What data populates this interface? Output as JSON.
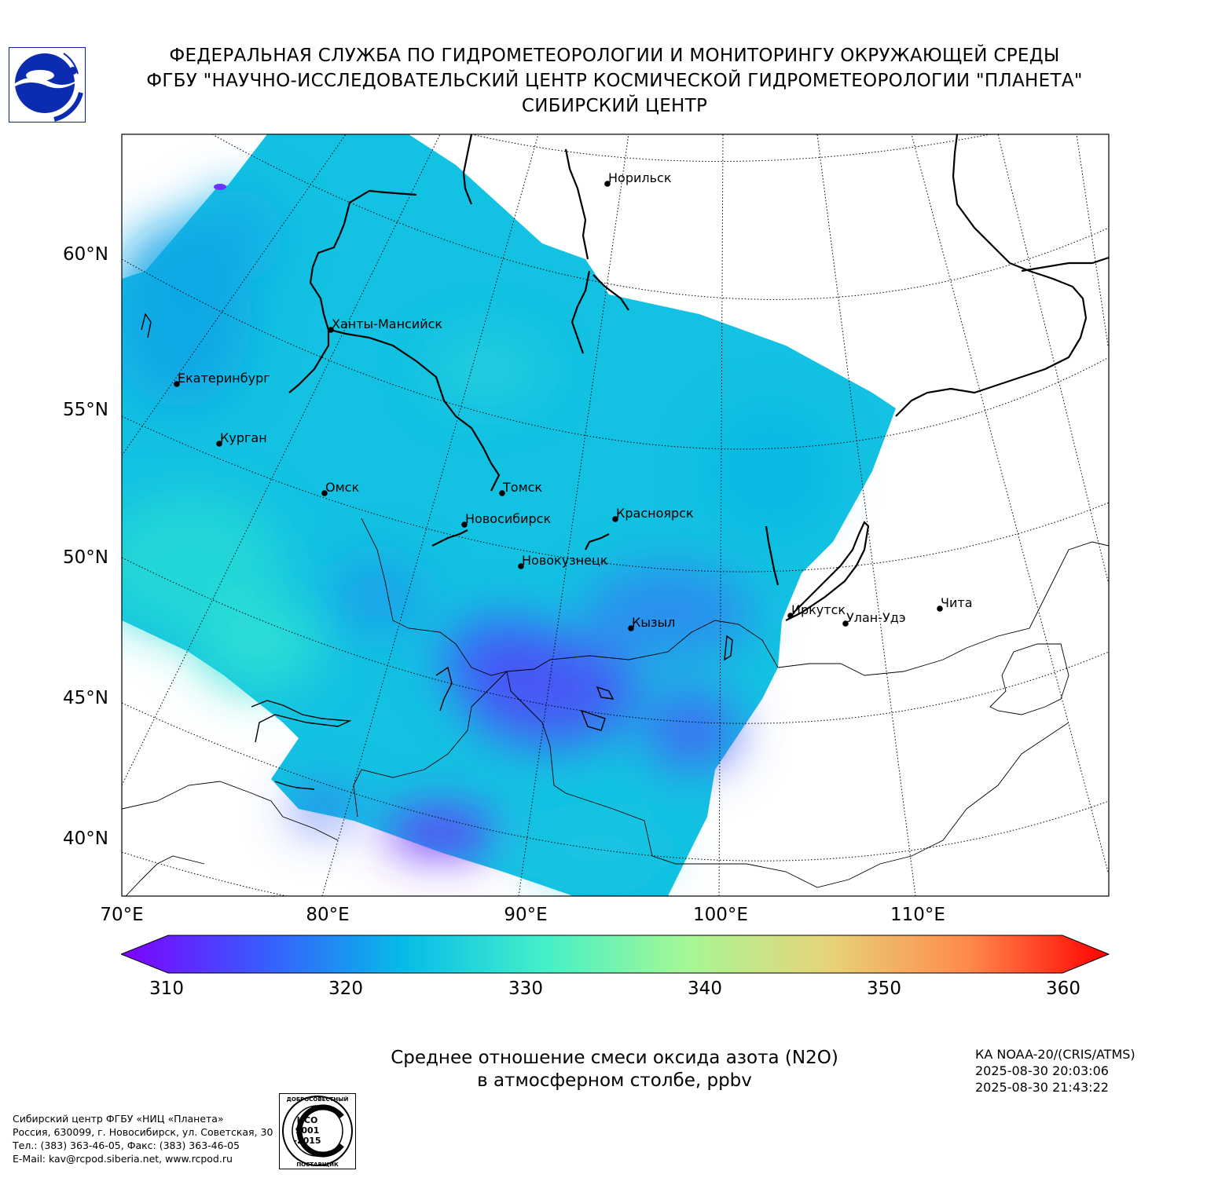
{
  "header": {
    "line1": "ФЕДЕРАЛЬНАЯ СЛУЖБА ПО ГИДРОМЕТЕОРОЛОГИИ И МОНИТОРИНГУ ОКРУЖАЮЩЕЙ СРЕДЫ",
    "line2": "ФГБУ \"НАУЧНО-ИССЛЕДОВАТЕЛЬСКИЙ ЦЕНТР КОСМИЧЕСКОЙ ГИДРОМЕТЕОРОЛОГИИ \"ПЛАНЕТА\"",
    "line3": "СИБИРСКИЙ ЦЕНТР"
  },
  "logo_icon": "roshydromet-logo",
  "map": {
    "lat_labels": [
      "60°N",
      "55°N",
      "50°N",
      "45°N",
      "40°N"
    ],
    "lon_labels": [
      "70°E",
      "80°E",
      "90°E",
      "100°E",
      "110°E"
    ],
    "cities": [
      "Норильск",
      "Ханты-Мансийск",
      "Екатеринбург",
      "Курган",
      "Омск",
      "Томск",
      "Новосибирск",
      "Красноярск",
      "Новокузнецк",
      "Кызыл",
      "Иркутск",
      "Улан-Удэ",
      "Чита"
    ]
  },
  "colorbar": {
    "min": 310,
    "max": 360,
    "tick_labels": [
      "310",
      "320",
      "330",
      "340",
      "350",
      "360"
    ],
    "colors": [
      "#7f00ff",
      "#3a5afd",
      "#06bbe9",
      "#44f0c8",
      "#a5f796",
      "#e7d47a",
      "#ff8a4c",
      "#ff0000"
    ]
  },
  "caption": {
    "line1": "Среднее отношение смеси оксида азота (N2O)",
    "line2": "в атмосферном столбе, ppbv"
  },
  "satellite": {
    "name": "КА NOAA-20/(CRIS/ATMS)",
    "time1": "2025-08-30 20:03:06",
    "time2": "2025-08-30 21:43:22"
  },
  "footer": {
    "line1": "Сибирский центр ФГБУ «НИЦ «Планета»",
    "line2": "Россия, 630099, г. Новосибирск, ул. Советская, 30",
    "line3": "Тел.: (383) 363-46-05, Факс: (383) 363-46-05",
    "line4": "E-Mail: kav@rcpod.siberia.net, www.rcpod.ru"
  },
  "stamp": {
    "top_text": "ДОБРОСОВЕСТНЫЙ",
    "center_text": [
      "ИСО",
      "9001",
      "-2015"
    ],
    "bottom_text": "ПОСТАВЩИК"
  }
}
